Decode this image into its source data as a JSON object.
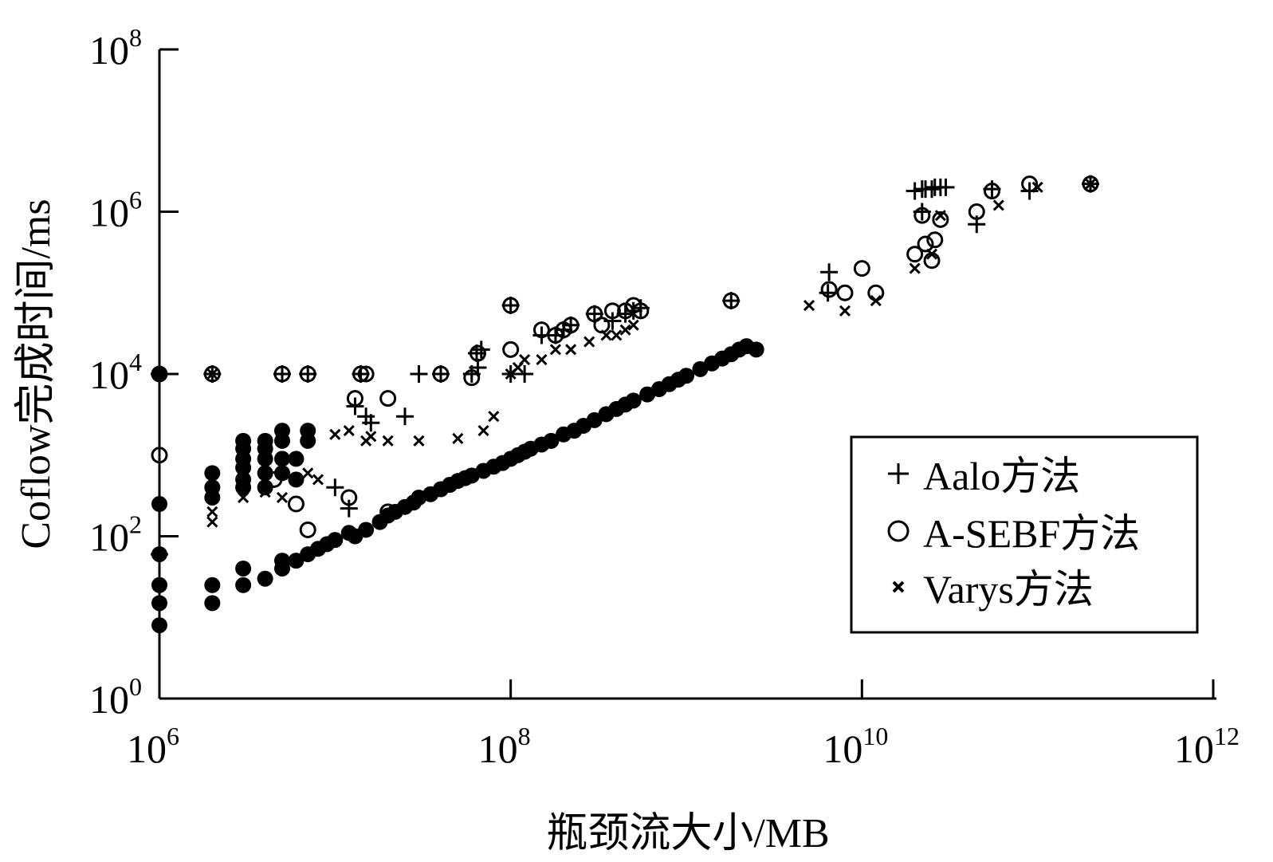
{
  "chart_data": {
    "type": "scatter",
    "title": "",
    "xlabel": "瓶颈流大小/MB",
    "ylabel": "Coflow完成时间/ms",
    "x_scale": "log",
    "y_scale": "log",
    "xlim": [
      1000000,
      1000000000000
    ],
    "ylim": [
      1,
      100000000
    ],
    "x_ticks": [
      {
        "base": "10",
        "exp": "6",
        "value": 1000000
      },
      {
        "base": "10",
        "exp": "8",
        "value": 100000000
      },
      {
        "base": "10",
        "exp": "10",
        "value": 10000000000
      },
      {
        "base": "10",
        "exp": "12",
        "value": 1000000000000
      }
    ],
    "y_ticks": [
      {
        "base": "10",
        "exp": "0",
        "value": 1
      },
      {
        "base": "10",
        "exp": "2",
        "value": 100
      },
      {
        "base": "10",
        "exp": "4",
        "value": 10000
      },
      {
        "base": "10",
        "exp": "6",
        "value": 1000000
      },
      {
        "base": "10",
        "exp": "8",
        "value": 100000000
      }
    ],
    "grid": false,
    "legend_position": "bottom-right",
    "series": [
      {
        "name": "Aalo方法",
        "marker": "plus",
        "points": [
          [
            1000000,
            10000
          ],
          [
            2000000,
            10000
          ],
          [
            5000000,
            10000
          ],
          [
            7000000,
            10000
          ],
          [
            14000000,
            10000
          ],
          [
            30000000,
            10000
          ],
          [
            40000000,
            10000
          ],
          [
            60000000,
            10000
          ],
          [
            65000000,
            12000
          ],
          [
            100000000,
            10000
          ],
          [
            120000000,
            10000
          ],
          [
            64000000,
            18000
          ],
          [
            68000000,
            20000
          ],
          [
            100000000,
            70000
          ],
          [
            150000000,
            30000
          ],
          [
            180000000,
            30000
          ],
          [
            200000000,
            35000
          ],
          [
            220000000,
            40000
          ],
          [
            300000000,
            55000
          ],
          [
            380000000,
            45000
          ],
          [
            450000000,
            55000
          ],
          [
            500000000,
            60000
          ],
          [
            550000000,
            65000
          ],
          [
            1800000000,
            80000
          ],
          [
            6500000000,
            180000
          ],
          [
            6400000000,
            100000
          ],
          [
            20000000000,
            1800000
          ],
          [
            22000000000,
            1900000
          ],
          [
            23000000000,
            1900000
          ],
          [
            25000000000,
            1900000
          ],
          [
            26000000000,
            2000000
          ],
          [
            28000000000,
            2000000
          ],
          [
            30000000000,
            2000000
          ],
          [
            22000000000,
            1000000
          ],
          [
            45000000000,
            700000
          ],
          [
            55000000000,
            1900000
          ],
          [
            90000000000,
            1800000
          ],
          [
            200000000000,
            2200000
          ],
          [
            13000000,
            4000
          ],
          [
            15000000,
            3000
          ],
          [
            16000000,
            2500
          ],
          [
            25000000,
            3000
          ],
          [
            12000000,
            220
          ],
          [
            10000000,
            400
          ],
          [
            1000000,
            60
          ]
        ]
      },
      {
        "name": "A-SEBF方法",
        "marker": "circle",
        "points": [
          [
            1000000,
            10000
          ],
          [
            1000000,
            1000
          ],
          [
            2000000,
            10000
          ],
          [
            5000000,
            10000
          ],
          [
            7000000,
            10000
          ],
          [
            14000000,
            10000
          ],
          [
            15000000,
            10000
          ],
          [
            40000000,
            10000
          ],
          [
            60000000,
            9000
          ],
          [
            100000000,
            20000
          ],
          [
            65000000,
            18000
          ],
          [
            100000000,
            70000
          ],
          [
            150000000,
            35000
          ],
          [
            180000000,
            30000
          ],
          [
            200000000,
            35000
          ],
          [
            220000000,
            40000
          ],
          [
            300000000,
            55000
          ],
          [
            330000000,
            40000
          ],
          [
            380000000,
            60000
          ],
          [
            450000000,
            60000
          ],
          [
            500000000,
            70000
          ],
          [
            550000000,
            60000
          ],
          [
            1800000000,
            80000
          ],
          [
            6500000000,
            110000
          ],
          [
            8000000000,
            100000
          ],
          [
            10000000000,
            200000
          ],
          [
            12000000000,
            100000
          ],
          [
            20000000000,
            300000
          ],
          [
            22000000000,
            900000
          ],
          [
            23000000000,
            400000
          ],
          [
            25000000000,
            250000
          ],
          [
            26000000000,
            450000
          ],
          [
            28000000000,
            800000
          ],
          [
            45000000000,
            1000000
          ],
          [
            55000000000,
            1800000
          ],
          [
            90000000000,
            2200000
          ],
          [
            200000000000,
            2200000
          ],
          [
            6000000,
            250
          ],
          [
            4500000,
            500
          ],
          [
            7000000,
            120
          ],
          [
            12000000,
            300
          ],
          [
            20000000,
            200
          ],
          [
            13000000,
            5000
          ],
          [
            20000000,
            5000
          ]
        ]
      },
      {
        "name": "Varys方法",
        "marker": "x",
        "points": [
          [
            1000000,
            10000
          ],
          [
            2000000,
            10000
          ],
          [
            2000000,
            150
          ],
          [
            2000000,
            200
          ],
          [
            3000000,
            300
          ],
          [
            3000000,
            400
          ],
          [
            4000000,
            350
          ],
          [
            4000000,
            500
          ],
          [
            5000000,
            300
          ],
          [
            5000000,
            700
          ],
          [
            7000000,
            600
          ],
          [
            8000000,
            500
          ],
          [
            10000000,
            1800
          ],
          [
            12000000,
            2000
          ],
          [
            15000000,
            1500
          ],
          [
            16000000,
            1700
          ],
          [
            20000000,
            1500
          ],
          [
            30000000,
            1500
          ],
          [
            50000000,
            1600
          ],
          [
            70000000,
            2000
          ],
          [
            80000000,
            3000
          ],
          [
            100000000,
            10000
          ],
          [
            110000000,
            12000
          ],
          [
            120000000,
            15000
          ],
          [
            150000000,
            15000
          ],
          [
            180000000,
            20000
          ],
          [
            220000000,
            20000
          ],
          [
            280000000,
            25000
          ],
          [
            350000000,
            30000
          ],
          [
            400000000,
            30000
          ],
          [
            450000000,
            35000
          ],
          [
            500000000,
            40000
          ],
          [
            5000000000,
            70000
          ],
          [
            8000000000,
            60000
          ],
          [
            12000000000,
            80000
          ],
          [
            20000000000,
            200000
          ],
          [
            25000000000,
            300000
          ],
          [
            28000000000,
            900000
          ],
          [
            60000000000,
            1200000
          ],
          [
            100000000000,
            2000000
          ],
          [
            200000000000,
            2200000
          ]
        ]
      },
      {
        "name": "",
        "marker": "filled-circle",
        "points": [
          [
            1000000,
            8
          ],
          [
            1000000,
            15
          ],
          [
            1000000,
            25
          ],
          [
            1000000,
            60
          ],
          [
            1000000,
            250
          ],
          [
            1000000,
            10000
          ],
          [
            2000000,
            15
          ],
          [
            2000000,
            25
          ],
          [
            2000000,
            300
          ],
          [
            2000000,
            400
          ],
          [
            2000000,
            600
          ],
          [
            3000000,
            25
          ],
          [
            3000000,
            40
          ],
          [
            3000000,
            400
          ],
          [
            3000000,
            500
          ],
          [
            3000000,
            700
          ],
          [
            3000000,
            900
          ],
          [
            3000000,
            1200
          ],
          [
            3000000,
            1500
          ],
          [
            4000000,
            30
          ],
          [
            4000000,
            400
          ],
          [
            4000000,
            600
          ],
          [
            4000000,
            900
          ],
          [
            4000000,
            1200
          ],
          [
            4000000,
            1500
          ],
          [
            5000000,
            40
          ],
          [
            5000000,
            50
          ],
          [
            5000000,
            600
          ],
          [
            5000000,
            900
          ],
          [
            5000000,
            1500
          ],
          [
            5000000,
            2000
          ],
          [
            6000000,
            50
          ],
          [
            6000000,
            500
          ],
          [
            6000000,
            900
          ],
          [
            7000000,
            60
          ],
          [
            7000000,
            1500
          ],
          [
            7000000,
            2000
          ],
          [
            8000000,
            70
          ],
          [
            9000000,
            80
          ],
          [
            10000000,
            90
          ],
          [
            12000000,
            110
          ],
          [
            13000000,
            100
          ],
          [
            15000000,
            120
          ],
          [
            18000000,
            150
          ],
          [
            20000000,
            180
          ],
          [
            22000000,
            200
          ],
          [
            25000000,
            230
          ],
          [
            28000000,
            260
          ],
          [
            30000000,
            300
          ],
          [
            35000000,
            330
          ],
          [
            40000000,
            380
          ],
          [
            45000000,
            430
          ],
          [
            50000000,
            480
          ],
          [
            55000000,
            520
          ],
          [
            60000000,
            560
          ],
          [
            70000000,
            640
          ],
          [
            80000000,
            720
          ],
          [
            90000000,
            800
          ],
          [
            100000000,
            900
          ],
          [
            110000000,
            1000
          ],
          [
            120000000,
            1100
          ],
          [
            130000000,
            1200
          ],
          [
            150000000,
            1350
          ],
          [
            170000000,
            1500
          ],
          [
            200000000,
            1800
          ],
          [
            230000000,
            2000
          ],
          [
            260000000,
            2300
          ],
          [
            300000000,
            2700
          ],
          [
            350000000,
            3200
          ],
          [
            400000000,
            3700
          ],
          [
            450000000,
            4200
          ],
          [
            500000000,
            4700
          ],
          [
            600000000,
            5600
          ],
          [
            700000000,
            6500
          ],
          [
            800000000,
            7500
          ],
          [
            900000000,
            8500
          ],
          [
            1000000000,
            9500
          ],
          [
            1200000000,
            11500
          ],
          [
            1400000000,
            13500
          ],
          [
            1600000000,
            15500
          ],
          [
            1800000000,
            17500
          ],
          [
            2000000000,
            20000
          ],
          [
            2200000000,
            22000
          ],
          [
            2500000000,
            20000
          ]
        ]
      }
    ]
  }
}
